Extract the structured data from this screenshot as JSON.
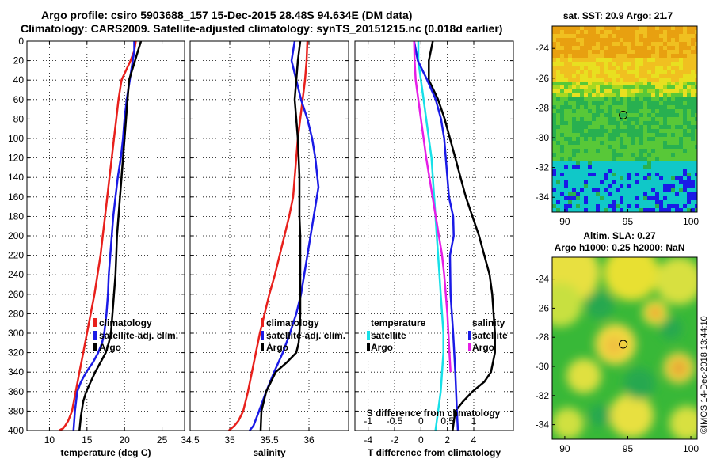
{
  "header": {
    "line1": "Argo profile: csiro 5903688_157 15-Dec-2015 28.48S 94.634E (DM data)",
    "line2": "Climatology: CARS2009. Satellite-adjusted climatology: synTS_20151215.nc (0.018d earlier)"
  },
  "colors": {
    "climatology": "#e8201c",
    "satellite": "#1a1ae6",
    "argo": "#000000",
    "t_sat": "#17e0e8",
    "t_argo": "#e61ee6"
  },
  "chart_data": [
    {
      "type": "line",
      "name": "temperature",
      "xlabel": "temperature (deg C)",
      "ylabel": "",
      "xlim": [
        7,
        28
      ],
      "ylim": [
        400,
        0
      ],
      "xticks": [
        10,
        15,
        20,
        25
      ],
      "xtick_labels": [
        "10",
        "15",
        "20",
        "25"
      ],
      "yticks": [
        0,
        20,
        40,
        60,
        80,
        100,
        120,
        140,
        160,
        180,
        200,
        220,
        240,
        260,
        280,
        300,
        320,
        340,
        360,
        380,
        400
      ],
      "ytick_labels": [
        "0",
        "20",
        "40",
        "60",
        "80",
        "100",
        "120",
        "140",
        "160",
        "180",
        "200",
        "220",
        "240",
        "260",
        "280",
        "300",
        "320",
        "340",
        "360",
        "380",
        "400"
      ],
      "grid": true,
      "legend": [
        "climatology",
        "satellite-adj. clim.",
        "Argo"
      ],
      "series": [
        {
          "name": "climatology",
          "color_key": "climatology",
          "x": [
            21.5,
            21.3,
            20.8,
            20.2,
            19.6,
            19.2,
            18.9,
            18.6,
            18.3,
            18.0,
            17.7,
            17.4,
            17.1,
            16.8,
            16.4,
            16.0,
            15.5,
            15.0,
            14.5,
            14.0,
            13.5,
            13.0,
            12.5,
            12.1,
            11.8,
            11.5,
            11.3
          ],
          "y": [
            0,
            10,
            20,
            30,
            40,
            60,
            80,
            100,
            120,
            140,
            160,
            180,
            200,
            220,
            240,
            260,
            280,
            300,
            320,
            340,
            360,
            380,
            390,
            395,
            398,
            399,
            400
          ]
        },
        {
          "name": "satellite-adj. clim.",
          "color_key": "satellite",
          "x": [
            21.3,
            21.3,
            21.1,
            20.7,
            20.3,
            20.0,
            19.8,
            19.5,
            19.1,
            18.8,
            18.5,
            18.3,
            18.1,
            17.9,
            17.8,
            17.6,
            17.3,
            17.0,
            16.5,
            15.8,
            14.9,
            14.2,
            13.7,
            13.4,
            13.2
          ],
          "y": [
            0,
            10,
            20,
            40,
            60,
            80,
            100,
            120,
            140,
            160,
            180,
            200,
            220,
            240,
            260,
            280,
            300,
            310,
            320,
            330,
            340,
            350,
            360,
            380,
            400
          ]
        },
        {
          "name": "Argo",
          "color_key": "argo",
          "x": [
            22.2,
            21.8,
            21.4,
            21.0,
            20.6,
            20.4,
            20.2,
            20.0,
            19.8,
            19.6,
            19.4,
            19.2,
            19.0,
            18.9,
            18.8,
            18.6,
            18.4,
            18.2,
            17.9,
            17.5,
            16.8,
            16.1,
            15.5,
            14.9,
            14.5,
            14.2,
            14.0
          ],
          "y": [
            0,
            10,
            20,
            30,
            40,
            60,
            80,
            100,
            120,
            140,
            160,
            180,
            200,
            220,
            240,
            260,
            280,
            300,
            310,
            320,
            330,
            340,
            350,
            360,
            370,
            385,
            400
          ]
        }
      ]
    },
    {
      "type": "line",
      "name": "salinity",
      "xlabel": "salinity",
      "xlim": [
        34.5,
        36.5
      ],
      "ylim": [
        400,
        0
      ],
      "xticks": [
        34.5,
        35,
        35.5,
        36
      ],
      "xtick_labels": [
        "34.5",
        "35",
        "35.5",
        "36"
      ],
      "grid": true,
      "legend": [
        "climatology",
        "satellite-adj. clim.",
        "Argo"
      ],
      "series": [
        {
          "name": "climatology",
          "color_key": "climatology",
          "x": [
            35.98,
            35.97,
            35.95,
            35.92,
            35.89,
            35.86,
            35.84,
            35.82,
            35.8,
            35.75,
            35.69,
            35.63,
            35.57,
            35.5,
            35.44,
            35.38,
            35.33,
            35.28,
            35.23,
            35.17,
            35.11,
            35.06,
            35.02,
            35.0,
            34.99
          ],
          "y": [
            0,
            20,
            40,
            60,
            80,
            100,
            120,
            140,
            160,
            180,
            200,
            220,
            240,
            260,
            280,
            300,
            320,
            340,
            360,
            380,
            390,
            395,
            398,
            399,
            400
          ]
        },
        {
          "name": "satellite-adj. clim.",
          "color_key": "satellite",
          "x": [
            35.82,
            35.8,
            35.78,
            35.84,
            35.9,
            35.98,
            36.04,
            36.08,
            36.12,
            36.06,
            36.02,
            35.98,
            35.94,
            35.9,
            35.84,
            35.76,
            35.67,
            35.56,
            35.46,
            35.37,
            35.3,
            35.25
          ],
          "y": [
            0,
            10,
            20,
            40,
            60,
            80,
            100,
            120,
            150,
            180,
            200,
            220,
            240,
            260,
            280,
            300,
            320,
            340,
            360,
            380,
            395,
            400
          ]
        },
        {
          "name": "Argo",
          "color_key": "argo",
          "x": [
            35.89,
            35.86,
            35.84,
            35.82,
            35.84,
            35.86,
            35.87,
            35.88,
            35.88,
            35.88,
            35.89,
            35.89,
            35.89,
            35.89,
            35.89,
            35.88,
            35.87,
            35.84,
            35.72,
            35.58,
            35.46,
            35.4,
            35.39
          ],
          "y": [
            0,
            20,
            40,
            60,
            80,
            100,
            120,
            140,
            160,
            180,
            200,
            220,
            240,
            260,
            280,
            300,
            310,
            320,
            330,
            340,
            360,
            380,
            400
          ]
        }
      ]
    },
    {
      "type": "line",
      "name": "difference from climatology",
      "xlabel": "T difference from climatology",
      "top_label": "S difference from climatology",
      "xlim": [
        -5,
        7
      ],
      "ylim": [
        400,
        0
      ],
      "xticks": [
        -4,
        -2,
        0,
        2,
        4
      ],
      "xtick_labels": [
        "-4",
        "-2",
        "0",
        "2",
        "4"
      ],
      "top_ticks": [
        -1,
        -0.5,
        0,
        0.5,
        1
      ],
      "top_tick_labels": [
        "-1",
        "-0.5",
        "0",
        "0.5",
        "1"
      ],
      "grid": true,
      "legend_left": {
        "title": "temperature",
        "items": [
          "satellite",
          "Argo"
        ]
      },
      "legend_right": {
        "title": "salinity",
        "items": [
          "satellite",
          "Argo"
        ]
      },
      "series": [
        {
          "name": "temperature satellite",
          "color_key": "t_sat",
          "x": [
            -0.2,
            -0.2,
            0.0,
            0.2,
            0.4,
            0.6,
            0.8,
            0.9,
            1.0,
            1.1,
            1.2,
            1.3,
            1.4,
            1.5,
            1.6,
            1.7,
            1.7,
            1.6,
            1.5,
            1.3,
            1.1
          ],
          "y": [
            0,
            20,
            40,
            60,
            80,
            100,
            120,
            140,
            160,
            180,
            200,
            220,
            240,
            260,
            280,
            300,
            320,
            340,
            360,
            380,
            400
          ]
        },
        {
          "name": "temperature Argo",
          "color_key": "argo",
          "x": [
            0.9,
            0.6,
            0.6,
            1.3,
            1.8,
            2.2,
            2.6,
            3.0,
            3.4,
            3.9,
            4.4,
            4.8,
            5.2,
            5.4,
            5.5,
            5.6,
            5.6,
            5.3,
            4.8,
            3.9,
            3.2,
            2.6,
            2.4
          ],
          "y": [
            0,
            20,
            40,
            60,
            80,
            100,
            120,
            140,
            160,
            180,
            200,
            220,
            240,
            260,
            280,
            300,
            320,
            340,
            350,
            360,
            370,
            380,
            400
          ]
        },
        {
          "name": "salinity satellite",
          "color_key": "satellite",
          "x": [
            -0.13,
            -0.06,
            0.12,
            0.28,
            0.38,
            0.44,
            0.47,
            0.53,
            0.61,
            0.62,
            0.55,
            0.56,
            0.61,
            0.65,
            0.68,
            0.7
          ],
          "y": [
            0,
            20,
            40,
            60,
            80,
            100,
            120,
            160,
            180,
            200,
            220,
            260,
            300,
            340,
            380,
            400
          ]
        },
        {
          "name": "salinity Argo",
          "color_key": "t_argo",
          "x": [
            -0.13,
            -0.12,
            -0.1,
            -0.05,
            0.0,
            0.05,
            0.1,
            0.16,
            0.22,
            0.28,
            0.34,
            0.4,
            0.44,
            0.47,
            0.5,
            0.52,
            0.54,
            0.56
          ],
          "y": [
            0,
            20,
            40,
            60,
            80,
            100,
            120,
            140,
            160,
            180,
            200,
            220,
            240,
            260,
            280,
            300,
            320,
            340
          ]
        }
      ]
    },
    {
      "type": "heatmap",
      "name": "sat SST map",
      "title": "sat. SST: 20.9 Argo: 21.7",
      "xlim": [
        89,
        100.5
      ],
      "ylim": [
        -35,
        -22.5
      ],
      "xticks": [
        90,
        95,
        100
      ],
      "xtick_labels": [
        "90",
        "95",
        "100"
      ],
      "yticks": [
        -24,
        -26,
        -28,
        -30,
        -32,
        -34
      ],
      "ytick_labels": [
        "-24",
        "-26",
        "-28",
        "-30",
        "-32",
        "-34"
      ],
      "marker": {
        "lon": 94.634,
        "lat": -28.48
      }
    },
    {
      "type": "heatmap",
      "name": "altimetry SLA map",
      "title": "Altim. SLA: 0.27",
      "subtitle": "Argo h1000: 0.25 h2000: NaN",
      "xlim": [
        89,
        100.5
      ],
      "ylim": [
        -35,
        -22.5
      ],
      "xticks": [
        90,
        95,
        100
      ],
      "xtick_labels": [
        "90",
        "95",
        "100"
      ],
      "yticks": [
        -24,
        -26,
        -28,
        -30,
        -32,
        -34
      ],
      "ytick_labels": [
        "-24",
        "-26",
        "-28",
        "-30",
        "-32",
        "-34"
      ],
      "marker": {
        "lon": 94.634,
        "lat": -28.48
      }
    }
  ],
  "footer": {
    "credit": "©IMOS 14-Dec-2018 13:44:10"
  }
}
